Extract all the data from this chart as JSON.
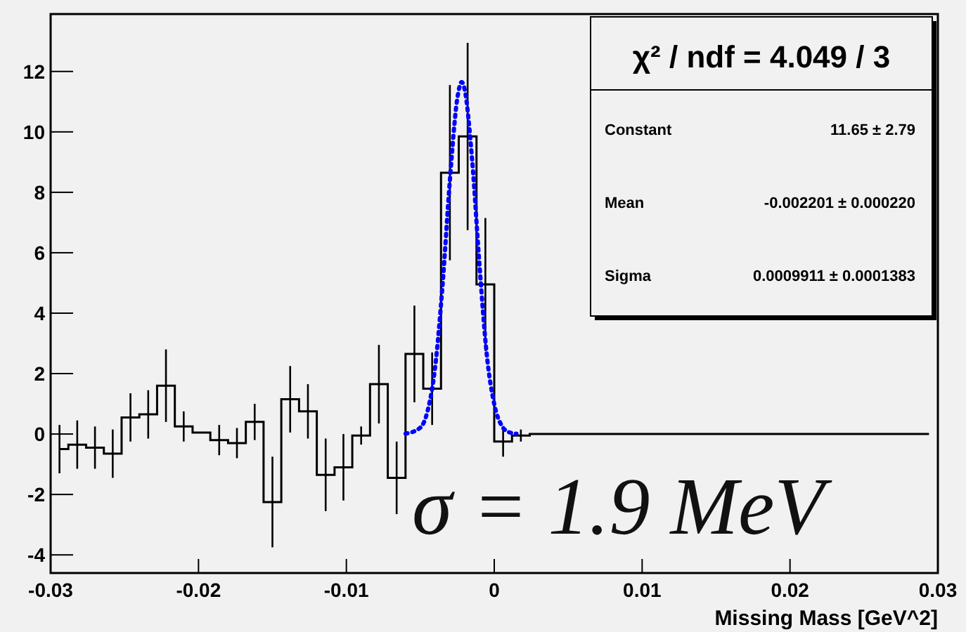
{
  "chart_data": {
    "type": "step",
    "xlabel": "Missing Mass [GeV^2]",
    "series": [
      {
        "color": "#000000",
        "x": [
          -0.0294,
          -0.0282,
          -0.027,
          -0.0258,
          -0.0246,
          -0.0234,
          -0.0222,
          -0.021,
          -0.0198,
          -0.0186,
          -0.0174,
          -0.0162,
          -0.015,
          -0.0138,
          -0.0126,
          -0.0114,
          -0.0102,
          -0.009,
          -0.0078,
          -0.0066,
          -0.0054,
          -0.0042,
          -0.003,
          -0.0018,
          -0.0006,
          0.0006,
          0.0018,
          0.003,
          0.0042,
          0.0054,
          0.0066,
          0.0078,
          0.009,
          0.0102,
          0.0114,
          0.0126,
          0.0138,
          0.015,
          0.0162,
          0.0174,
          0.0186,
          0.0198,
          0.021,
          0.0222,
          0.0234,
          0.0246,
          0.0258,
          0.027,
          0.0282,
          0.0294
        ],
        "values": [
          -0.5,
          -0.35,
          -0.45,
          -0.65,
          0.55,
          0.65,
          1.6,
          0.25,
          0.05,
          -0.2,
          -0.3,
          0.4,
          -2.25,
          1.15,
          0.75,
          -1.35,
          -1.1,
          -0.05,
          1.65,
          -1.45,
          2.65,
          1.5,
          8.65,
          9.85,
          4.95,
          -0.25,
          -0.05,
          0,
          0,
          0,
          0,
          0,
          0,
          0,
          0,
          0,
          0,
          0,
          0,
          0,
          0,
          0,
          0,
          0,
          0,
          0,
          0,
          0,
          0,
          0
        ],
        "errors": [
          0.8,
          0.8,
          0.7,
          0.8,
          0.8,
          0.8,
          1.2,
          0.5,
          null,
          0.5,
          0.5,
          0.6,
          1.5,
          1.1,
          0.9,
          1.2,
          1.1,
          0.3,
          1.3,
          1.2,
          1.6,
          1.2,
          2.9,
          3.1,
          2.2,
          0.5,
          0.2,
          null,
          null,
          null,
          null,
          null,
          null,
          null,
          null,
          null,
          null,
          null,
          null,
          null,
          null,
          null,
          null,
          null,
          null,
          null,
          null,
          null,
          null,
          null
        ]
      },
      {
        "type": "line",
        "color": "#0000ff",
        "line_style": "dotted",
        "x": [
          -0.006,
          -0.005,
          -0.0045,
          -0.004,
          -0.0035,
          -0.003,
          -0.0025,
          -0.0022,
          -0.002,
          -0.0015,
          -0.001,
          -0.0005,
          0,
          0.0005,
          0.001,
          0.0015
        ],
        "values": [
          0.01,
          0.21,
          0.78,
          2.2,
          4.9,
          8.4,
          11.1,
          11.65,
          11.4,
          9.1,
          5.6,
          2.6,
          0.99,
          0.28,
          0.06,
          0.01
        ]
      }
    ],
    "xlim": [
      -0.03,
      0.03
    ],
    "xticks": [
      -0.03,
      -0.02,
      -0.01,
      0,
      0.01,
      0.02,
      0.03
    ],
    "ylim": [
      -4.6,
      13.9
    ],
    "yticks": [
      -4,
      -2,
      0,
      2,
      4,
      6,
      8,
      10,
      12
    ],
    "annotations": [
      "χ² / ndf = 4.049 / 3",
      "Constant",
      "11.65 ± 2.79",
      "Mean",
      "-0.002201 ± 0.000220",
      "Sigma",
      "0.0009911 ± 0.0001383",
      "σ = 1.9 MeV"
    ]
  }
}
